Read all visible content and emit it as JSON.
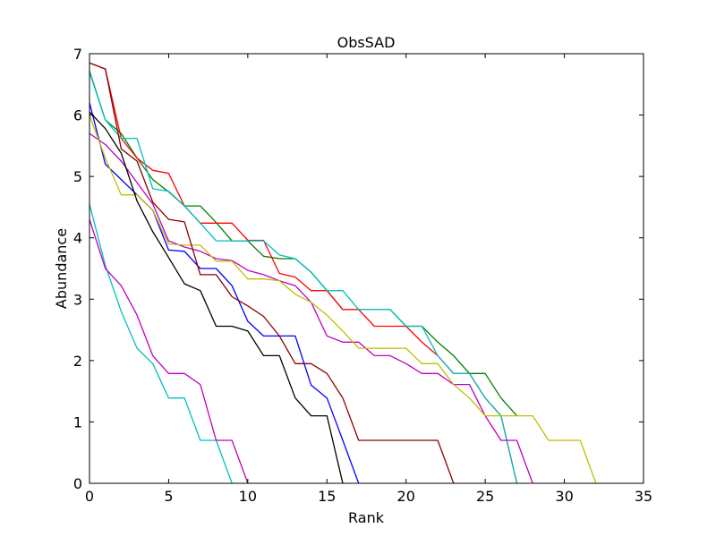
{
  "chart_data": {
    "type": "line",
    "title": "ObsSAD",
    "xlabel": "Rank",
    "ylabel": "Abundance",
    "xlim": [
      0,
      35
    ],
    "ylim": [
      0,
      7
    ],
    "xticks": [
      0,
      5,
      10,
      15,
      20,
      25,
      30,
      35
    ],
    "yticks": [
      0,
      1,
      2,
      3,
      4,
      5,
      6,
      7
    ],
    "grid": false,
    "legend": "none",
    "series": [
      {
        "color": "#0000ff",
        "y": [
          6.2,
          5.2,
          4.95,
          4.7,
          4.45,
          3.8,
          3.78,
          3.5,
          3.5,
          3.22,
          2.64,
          2.4,
          2.4,
          2.4,
          1.6,
          1.39,
          0.7,
          0
        ]
      },
      {
        "color": "#008000",
        "y": [
          6.72,
          5.92,
          5.7,
          5.3,
          4.95,
          4.75,
          4.52,
          4.52,
          4.25,
          3.95,
          3.95,
          3.7,
          3.66,
          3.66,
          3.44,
          3.14,
          2.83,
          2.83,
          2.83,
          2.83,
          2.56,
          2.56,
          2.3,
          2.08,
          1.79,
          1.79,
          1.39,
          1.1
        ]
      },
      {
        "color": "#ff0000",
        "y": [
          6.85,
          6.75,
          5.62,
          5.3,
          5.1,
          5.05,
          4.52,
          4.24,
          4.24,
          4.24,
          3.96,
          3.96,
          3.42,
          3.36,
          3.14,
          3.14,
          2.83,
          2.83,
          2.56,
          2.56,
          2.56,
          2.3,
          2.08,
          1.79,
          1.79,
          1.39,
          1.1,
          0
        ]
      },
      {
        "color": "#00bfbf",
        "y": [
          6.7,
          5.92,
          5.62,
          5.62,
          4.8,
          4.76,
          4.52,
          4.24,
          3.95,
          3.95,
          3.95,
          3.95,
          3.72,
          3.66,
          3.44,
          3.14,
          3.14,
          2.83,
          2.83,
          2.83,
          2.56,
          2.56,
          2.08,
          1.79,
          1.79,
          1.39,
          1.1,
          0
        ]
      },
      {
        "color": "#bf00bf",
        "y": [
          5.7,
          5.52,
          5.25,
          4.9,
          4.55,
          3.95,
          3.85,
          3.78,
          3.66,
          3.63,
          3.47,
          3.4,
          3.3,
          3.22,
          2.95,
          2.4,
          2.3,
          2.3,
          2.08,
          2.08,
          1.95,
          1.79,
          1.79,
          1.61,
          1.61,
          1.1,
          0.7,
          0.7,
          0
        ]
      },
      {
        "color": "#bfbf00",
        "y": [
          6.0,
          5.3,
          4.7,
          4.7,
          4.45,
          3.9,
          3.88,
          3.88,
          3.62,
          3.62,
          3.33,
          3.33,
          3.3,
          3.08,
          2.95,
          2.74,
          2.48,
          2.2,
          2.2,
          2.2,
          2.2,
          1.95,
          1.95,
          1.61,
          1.39,
          1.1,
          1.1,
          1.1,
          1.1,
          0.7,
          0.7,
          0.7,
          0
        ]
      },
      {
        "color": "#000000",
        "y": [
          6.05,
          5.78,
          5.38,
          4.6,
          4.1,
          3.68,
          3.25,
          3.14,
          2.56,
          2.56,
          2.48,
          2.08,
          2.08,
          1.39,
          1.1,
          1.1,
          0
        ]
      },
      {
        "color": "#00bfbf",
        "y": [
          4.55,
          3.55,
          2.8,
          2.2,
          1.95,
          1.39,
          1.39,
          0.7,
          0.7,
          0
        ]
      },
      {
        "color": "#bf00bf",
        "y": [
          4.3,
          3.5,
          3.22,
          2.74,
          2.08,
          1.79,
          1.79,
          1.61,
          0.7,
          0.7,
          0
        ]
      },
      {
        "color": "#8b0000",
        "y": [
          6.85,
          6.75,
          5.45,
          5.25,
          4.58,
          4.3,
          4.26,
          3.4,
          3.4,
          3.04,
          2.89,
          2.72,
          2.4,
          1.95,
          1.95,
          1.79,
          1.39,
          0.7,
          0.7,
          0.7,
          0.7,
          0.7,
          0.7,
          0
        ]
      }
    ]
  }
}
